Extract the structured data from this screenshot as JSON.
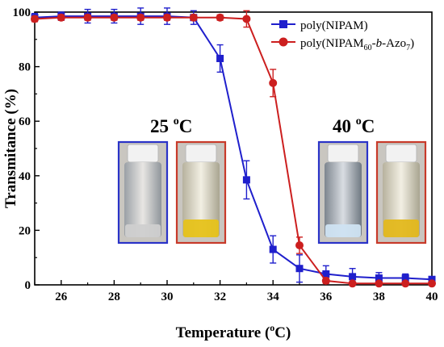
{
  "chart_data": {
    "type": "line",
    "xlabel": "Temperature (°C)",
    "ylabel": "Transmitance (%)",
    "xlim": [
      25,
      40
    ],
    "ylim": [
      0,
      100
    ],
    "x_ticks": [
      26,
      28,
      30,
      32,
      34,
      36,
      38,
      40
    ],
    "y_ticks": [
      0,
      20,
      40,
      60,
      80,
      100
    ],
    "grid": false,
    "legend_position": "top-right",
    "series": [
      {
        "name": "poly(NIPAM)",
        "color": "#1f1fcc",
        "marker": "square",
        "x": [
          25,
          26,
          27,
          28,
          29,
          30,
          31,
          32,
          33,
          34,
          35,
          36,
          37,
          38,
          39,
          40
        ],
        "y": [
          98,
          98.5,
          98.5,
          98.5,
          98.5,
          98.5,
          98,
          83,
          38.5,
          13,
          6,
          4,
          3,
          2.5,
          2.5,
          2
        ],
        "error": [
          1.5,
          1.5,
          2.5,
          2.5,
          3,
          3,
          2.5,
          5,
          7,
          5,
          5,
          3,
          3,
          2,
          1.5,
          1
        ]
      },
      {
        "name": "poly(NIPAM60-b-Azo7)",
        "color": "#cc1f1f",
        "marker": "circle",
        "x": [
          25,
          26,
          27,
          28,
          29,
          30,
          31,
          32,
          33,
          34,
          35,
          36,
          37,
          38,
          39,
          40
        ],
        "y": [
          97.5,
          98,
          98,
          98,
          98,
          98,
          98,
          98,
          97.5,
          74,
          14.5,
          1.5,
          0.5,
          0.5,
          0.5,
          0.5
        ],
        "error": [
          1,
          1,
          1,
          1,
          1,
          1,
          1,
          1,
          3,
          5,
          3,
          1,
          0.5,
          0.5,
          0.5,
          0.5
        ]
      }
    ],
    "annotations": [
      {
        "label": "25 °C",
        "base": "25 ",
        "sup": "o",
        "unit": "C"
      },
      {
        "label": "40 °C",
        "base": "40 ",
        "sup": "o",
        "unit": "C"
      }
    ]
  },
  "legend": {
    "items": [
      {
        "color": "#1f1fcc",
        "marker": "square",
        "text": "poly(NIPAM)"
      },
      {
        "color": "#cc1f1f",
        "marker": "circle",
        "text_prefix": "poly(NIPAM",
        "sub1": "60",
        "mid": "-",
        "italic": "b",
        "mid2": "-Azo",
        "sub2": "7",
        "suffix": ")"
      }
    ]
  },
  "xlabel_parts": {
    "pre": "Temperature (",
    "sup": "o",
    "post": "C)"
  },
  "photos": [
    {
      "name": "photo-nipam-25",
      "frame": "#2a33c8",
      "liquid": "#cfcfcf"
    },
    {
      "name": "photo-azo-25",
      "frame": "#c83a2a",
      "liquid": "#e6c21a"
    },
    {
      "name": "photo-nipam-40",
      "frame": "#2a33c8",
      "liquid": "#cfe3f2"
    },
    {
      "name": "photo-azo-40",
      "frame": "#c83a2a",
      "liquid": "#e3b81c"
    }
  ]
}
